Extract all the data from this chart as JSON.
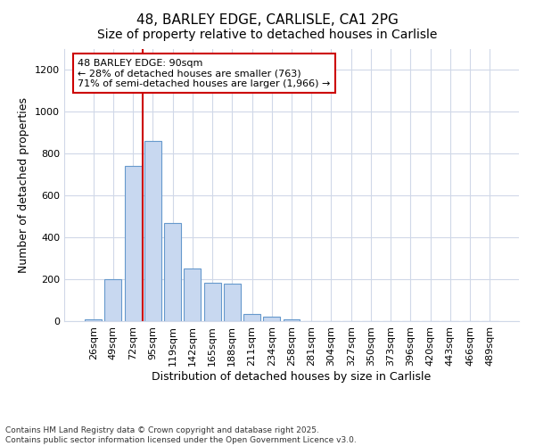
{
  "title": "48, BARLEY EDGE, CARLISLE, CA1 2PG",
  "subtitle": "Size of property relative to detached houses in Carlisle",
  "xlabel": "Distribution of detached houses by size in Carlisle",
  "ylabel": "Number of detached properties",
  "categories": [
    "26sqm",
    "49sqm",
    "72sqm",
    "95sqm",
    "119sqm",
    "142sqm",
    "165sqm",
    "188sqm",
    "211sqm",
    "234sqm",
    "258sqm",
    "281sqm",
    "304sqm",
    "327sqm",
    "350sqm",
    "373sqm",
    "396sqm",
    "420sqm",
    "443sqm",
    "466sqm",
    "489sqm"
  ],
  "values": [
    10,
    200,
    740,
    860,
    470,
    250,
    185,
    180,
    35,
    20,
    10,
    0,
    0,
    0,
    0,
    0,
    0,
    0,
    0,
    0,
    0
  ],
  "bar_color": "#c8d8f0",
  "bar_edgecolor": "#6699cc",
  "redline_x": 3,
  "redline_label": "48 BARLEY EDGE: 90sqm",
  "redline_line1": "← 28% of detached houses are smaller (763)",
  "redline_line2": "71% of semi-detached houses are larger (1,966) →",
  "redline_color": "#cc0000",
  "annotation_box_edgecolor": "#cc0000",
  "ylim": [
    0,
    1300
  ],
  "yticks": [
    0,
    200,
    400,
    600,
    800,
    1000,
    1200
  ],
  "background_color": "#ffffff",
  "plot_bg_color": "#ffffff",
  "grid_color": "#d0d8e8",
  "title_fontsize": 11,
  "subtitle_fontsize": 10,
  "axis_label_fontsize": 9,
  "tick_fontsize": 8,
  "annotation_fontsize": 8,
  "footer_text": "Contains HM Land Registry data © Crown copyright and database right 2025.\nContains public sector information licensed under the Open Government Licence v3.0."
}
